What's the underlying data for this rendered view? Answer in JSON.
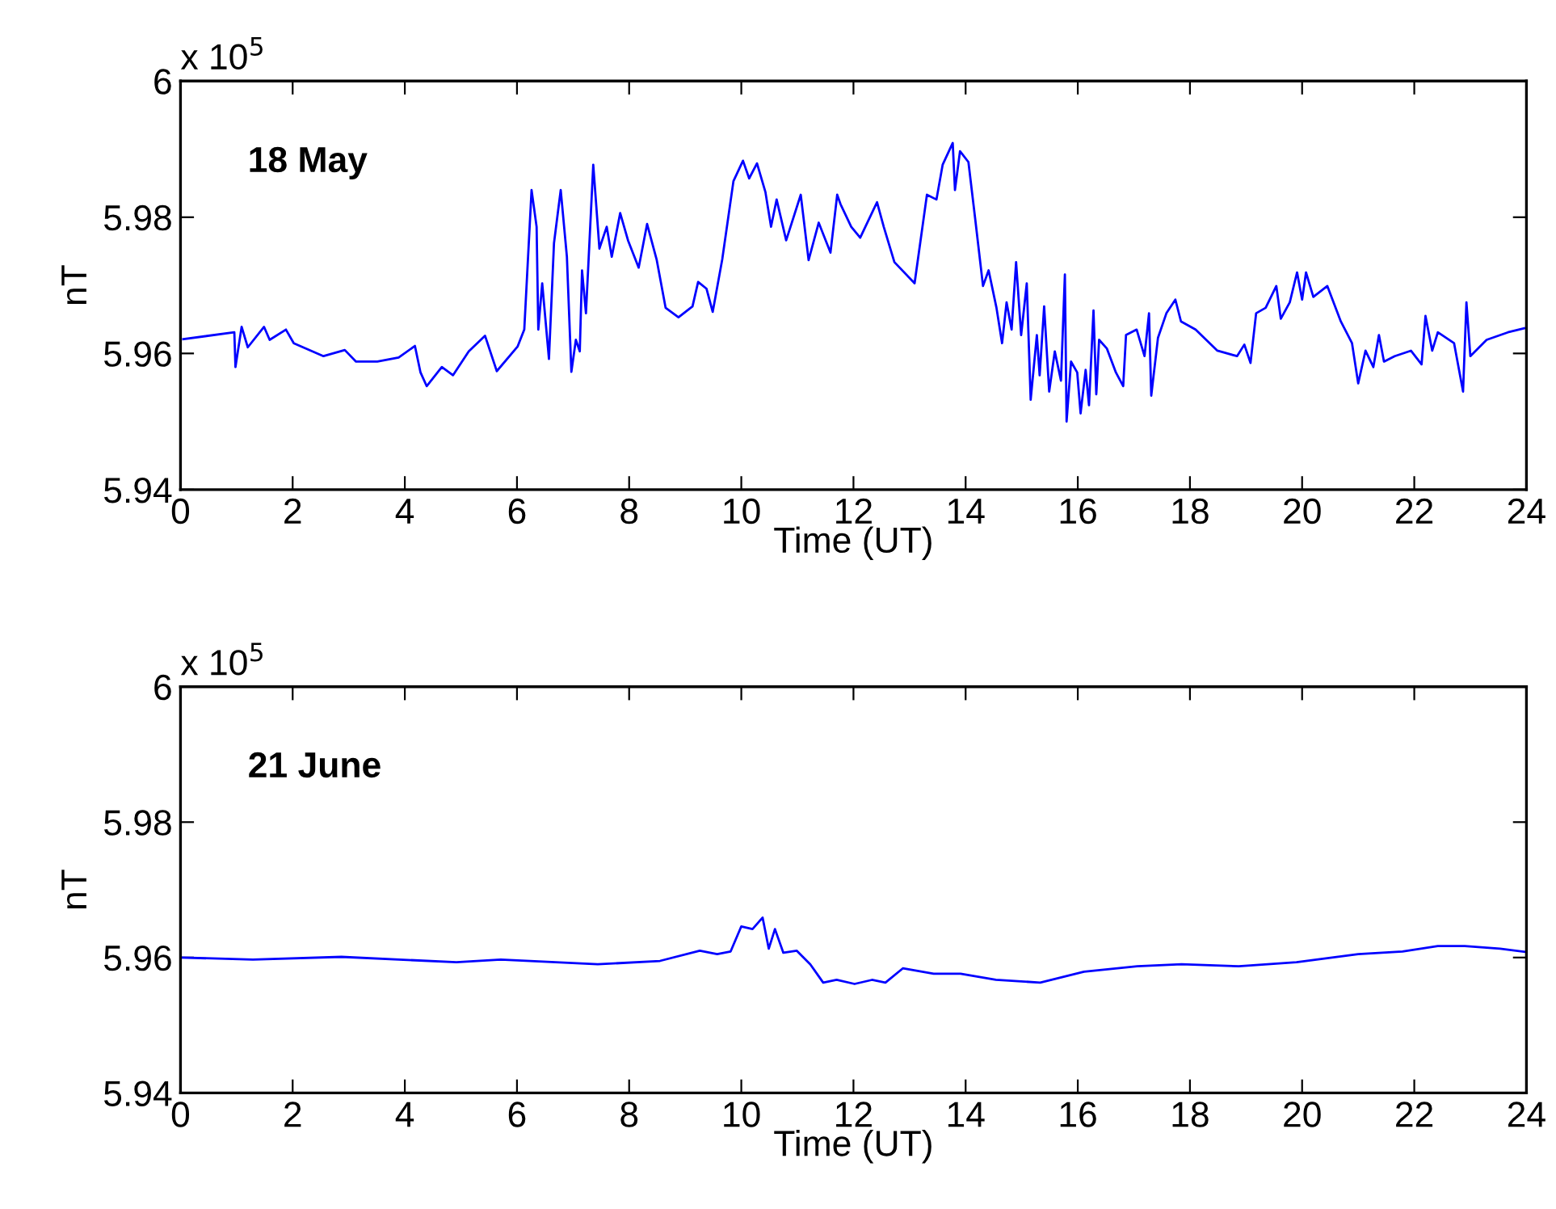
{
  "chart_data": [
    {
      "type": "line",
      "title": "18 May",
      "xlabel": "Time (UT)",
      "ylabel": "nT",
      "annotations": [
        "x 10$^{5}$"
      ],
      "xlim": [
        0,
        24
      ],
      "xticks": [
        0,
        2,
        4,
        6,
        8,
        10,
        12,
        14,
        16,
        18,
        20,
        22,
        24
      ],
      "ylim": [
        5.94,
        6
      ],
      "yticks": [
        5.94,
        5.96,
        5.98,
        6
      ],
      "grid": false,
      "legend": false,
      "marker": "none",
      "line_style": "solid",
      "series": [
        {
          "color": "#0000ff",
          "x": [
            0.05,
            0.96,
            0.98,
            1.09,
            1.2,
            1.49,
            1.59,
            1.88,
            2.02,
            2.55,
            2.93,
            3.13,
            3.51,
            3.89,
            4.18,
            4.28,
            4.39,
            4.66,
            4.86,
            5.14,
            5.43,
            5.64,
            6.01,
            6.13,
            6.26,
            6.35,
            6.38,
            6.45,
            6.57,
            6.66,
            6.78,
            6.89,
            6.97,
            7.05,
            7.12,
            7.16,
            7.23,
            7.36,
            7.47,
            7.6,
            7.69,
            7.84,
            7.98,
            8.17,
            8.32,
            8.49,
            8.65,
            8.88,
            9.13,
            9.23,
            9.38,
            9.49,
            9.66,
            9.86,
            10.03,
            10.14,
            10.28,
            10.43,
            10.53,
            10.63,
            10.8,
            11.06,
            11.2,
            11.38,
            11.59,
            11.71,
            11.77,
            11.96,
            12.12,
            12.42,
            12.54,
            12.73,
            13.09,
            13.31,
            13.48,
            13.59,
            13.77,
            13.81,
            13.9,
            14.05,
            14.17,
            14.31,
            14.41,
            14.55,
            14.65,
            14.73,
            14.82,
            14.9,
            14.99,
            15.09,
            15.16,
            15.27,
            15.32,
            15.4,
            15.49,
            15.59,
            15.7,
            15.77,
            15.8,
            15.88,
            15.99,
            16.05,
            16.14,
            16.2,
            16.28,
            16.33,
            16.38,
            16.52,
            16.68,
            16.81,
            16.86,
            17.05,
            17.19,
            17.27,
            17.31,
            17.43,
            17.58,
            17.74,
            17.84,
            18.1,
            18.49,
            18.84,
            18.97,
            19.08,
            19.18,
            19.35,
            19.54,
            19.62,
            19.78,
            19.91,
            20.0,
            20.07,
            20.2,
            20.45,
            20.69,
            20.89,
            21.0,
            21.13,
            21.27,
            21.37,
            21.46,
            21.65,
            21.94,
            22.13,
            22.2,
            22.32,
            22.42,
            22.71,
            22.87,
            22.93,
            23.0,
            23.29,
            23.67,
            23.96
          ],
          "values": [
            5.9621,
            5.9631,
            5.958,
            5.9639,
            5.9609,
            5.9639,
            5.962,
            5.9635,
            5.9615,
            5.9596,
            5.9605,
            5.9588,
            5.9588,
            5.9594,
            5.9611,
            5.9572,
            5.9552,
            5.958,
            5.9568,
            5.9603,
            5.9626,
            5.9574,
            5.961,
            5.9635,
            5.984,
            5.9786,
            5.9635,
            5.9703,
            5.9592,
            5.9762,
            5.984,
            5.9742,
            5.9573,
            5.962,
            5.9603,
            5.9722,
            5.9659,
            5.9877,
            5.9754,
            5.9786,
            5.9742,
            5.9806,
            5.9766,
            5.9726,
            5.979,
            5.9738,
            5.9667,
            5.9653,
            5.9669,
            5.9705,
            5.9695,
            5.9661,
            5.9738,
            5.9853,
            5.9883,
            5.9857,
            5.9879,
            5.9837,
            5.9786,
            5.9826,
            5.9766,
            5.9833,
            5.9737,
            5.9792,
            5.9748,
            5.9833,
            5.9819,
            5.9786,
            5.977,
            5.9822,
            5.9786,
            5.9734,
            5.9703,
            5.9833,
            5.9826,
            5.9877,
            5.9909,
            5.984,
            5.9897,
            5.9881,
            5.9798,
            5.9699,
            5.9722,
            5.9667,
            5.9615,
            5.9675,
            5.9635,
            5.9734,
            5.9627,
            5.9703,
            5.9532,
            5.9627,
            5.9568,
            5.9669,
            5.9544,
            5.9603,
            5.956,
            5.9716,
            5.95,
            5.9588,
            5.9572,
            5.9512,
            5.9576,
            5.9524,
            5.9663,
            5.954,
            5.962,
            5.9607,
            5.9572,
            5.9552,
            5.9627,
            5.9635,
            5.9596,
            5.9659,
            5.9538,
            5.9623,
            5.9659,
            5.9679,
            5.9647,
            5.9635,
            5.9604,
            5.9596,
            5.9613,
            5.9586,
            5.9659,
            5.9667,
            5.9699,
            5.9651,
            5.9675,
            5.9719,
            5.9679,
            5.9719,
            5.9683,
            5.9699,
            5.9647,
            5.9615,
            5.9556,
            5.9604,
            5.958,
            5.9627,
            5.9588,
            5.9596,
            5.9604,
            5.9584,
            5.9655,
            5.9604,
            5.9631,
            5.9615,
            5.9544,
            5.9675,
            5.9596,
            5.962,
            5.9631,
            5.9637
          ]
        }
      ]
    },
    {
      "type": "line",
      "title": "21 June",
      "xlabel": "Time (UT)",
      "ylabel": "nT",
      "annotations": [
        "x 10$^{5}$"
      ],
      "xlim": [
        0,
        24
      ],
      "xticks": [
        0,
        2,
        4,
        6,
        8,
        10,
        12,
        14,
        16,
        18,
        20,
        22,
        24
      ],
      "ylim": [
        5.94,
        6
      ],
      "yticks": [
        5.94,
        5.96,
        5.98,
        6
      ],
      "grid": false,
      "legend": false,
      "marker": "none",
      "line_style": "solid",
      "series": [
        {
          "color": "#0000ff",
          "x": [
            0,
            1.29,
            2.87,
            4.92,
            5.71,
            7.44,
            8.55,
            9.26,
            9.57,
            9.81,
            10.0,
            10.2,
            10.38,
            10.49,
            10.6,
            10.75,
            10.99,
            11.23,
            11.46,
            11.7,
            12.02,
            12.33,
            12.57,
            12.88,
            13.43,
            13.91,
            14.54,
            15.33,
            16.11,
            17.06,
            17.85,
            18.87,
            19.9,
            21.0,
            21.79,
            22.42,
            22.9,
            23.53,
            24
          ],
          "values": [
            5.96,
            5.9597,
            5.9601,
            5.9593,
            5.9597,
            5.959,
            5.9595,
            5.961,
            5.9605,
            5.9609,
            5.9646,
            5.9642,
            5.9659,
            5.9613,
            5.9642,
            5.9607,
            5.961,
            5.959,
            5.9563,
            5.9567,
            5.9561,
            5.9567,
            5.9563,
            5.9584,
            5.9576,
            5.9576,
            5.9567,
            5.9563,
            5.9579,
            5.9587,
            5.959,
            5.9587,
            5.9593,
            5.9605,
            5.9609,
            5.9617,
            5.9617,
            5.9613,
            5.9608
          ]
        }
      ]
    }
  ]
}
